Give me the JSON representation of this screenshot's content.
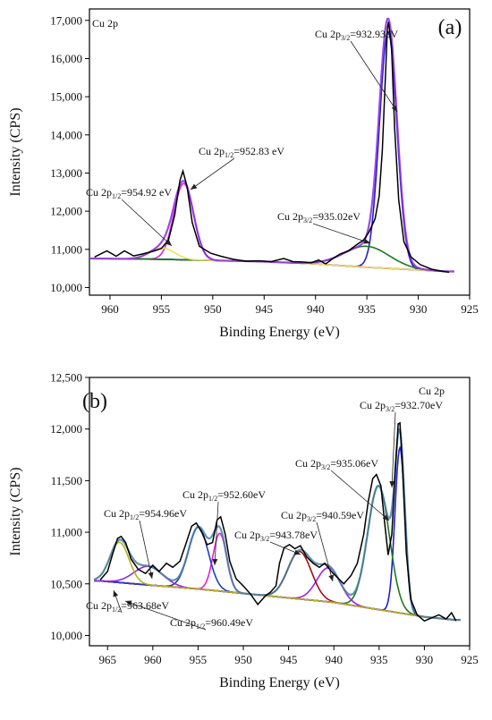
{
  "chart_data": [
    {
      "type": "line",
      "panel_label": "(a)",
      "corner_label": "Cu 2p",
      "xlabel": "Binding Energy (eV)",
      "ylabel": "Intensity (CPS)",
      "x_reversed": true,
      "xlim": [
        962,
        925
      ],
      "ylim": [
        9800,
        17300
      ],
      "xticks": [
        960,
        955,
        950,
        945,
        940,
        935,
        930,
        925
      ],
      "yticks": [
        10000,
        11000,
        12000,
        13000,
        14000,
        15000,
        16000,
        17000
      ],
      "ytick_labels": [
        "10,000",
        "11,000",
        "12,000",
        "13,000",
        "14,000",
        "15,000",
        "16,000",
        "17,000"
      ],
      "background": {
        "color": "#1a7a1a",
        "points": [
          [
            961.5,
            10760
          ],
          [
            955,
            10740
          ],
          [
            945,
            10680
          ],
          [
            940,
            10620
          ],
          [
            935,
            10530
          ],
          [
            930,
            10460
          ],
          [
            927,
            10420
          ]
        ]
      },
      "raw": {
        "color": "#000000",
        "points": [
          [
            961.5,
            10800
          ],
          [
            960.3,
            10960
          ],
          [
            959.4,
            10820
          ],
          [
            958.6,
            10960
          ],
          [
            957.7,
            10830
          ],
          [
            956.8,
            10880
          ],
          [
            955.8,
            10950
          ],
          [
            955.0,
            11020
          ],
          [
            954.3,
            11250
          ],
          [
            953.7,
            11900
          ],
          [
            953.2,
            12800
          ],
          [
            952.9,
            13050
          ],
          [
            952.5,
            12650
          ],
          [
            952.0,
            11700
          ],
          [
            951.3,
            11080
          ],
          [
            950.2,
            10900
          ],
          [
            949.2,
            10820
          ],
          [
            948.0,
            10740
          ],
          [
            946.8,
            10690
          ],
          [
            945.5,
            10700
          ],
          [
            944.3,
            10680
          ],
          [
            943.1,
            10760
          ],
          [
            942.2,
            10680
          ],
          [
            941.3,
            10670
          ],
          [
            940.4,
            10650
          ],
          [
            939.7,
            10720
          ],
          [
            939.0,
            10620
          ],
          [
            938.3,
            10760
          ],
          [
            937.6,
            10880
          ],
          [
            936.8,
            10960
          ],
          [
            936.1,
            11100
          ],
          [
            935.3,
            11250
          ],
          [
            934.8,
            11450
          ],
          [
            934.2,
            11800
          ],
          [
            933.8,
            12400
          ],
          [
            933.5,
            13600
          ],
          [
            933.2,
            15500
          ],
          [
            933.0,
            16800
          ],
          [
            932.9,
            16960
          ],
          [
            932.6,
            16300
          ],
          [
            932.3,
            14200
          ],
          [
            931.9,
            12300
          ],
          [
            931.4,
            11200
          ],
          [
            930.7,
            10800
          ],
          [
            929.8,
            10600
          ],
          [
            928.7,
            10480
          ],
          [
            927.6,
            10420
          ],
          [
            927.0,
            10400
          ]
        ]
      },
      "peaks": [
        {
          "label_main": "Cu 2p",
          "label_sub": "3/2",
          "label_rest": "=932.93eV",
          "center": 932.93,
          "height": 6200,
          "sigma": 0.85,
          "color": "#1f1fd0"
        },
        {
          "label_main": "Cu 2p",
          "label_sub": "1/2",
          "label_rest": "=952.83 eV",
          "center": 952.83,
          "height": 2000,
          "sigma": 0.95,
          "color": "#e020e0"
        },
        {
          "label_main": "Cu 2p",
          "label_sub": "3/2",
          "label_rest": "=935.02eV",
          "center": 935.02,
          "height": 550,
          "sigma": 2.2,
          "color": "#1a7a1a"
        },
        {
          "label_main": "Cu 2p",
          "label_sub": "1/2",
          "label_rest": "=954.92 eV",
          "center": 954.92,
          "height": 300,
          "sigma": 1.2,
          "color": "#f0e060"
        }
      ],
      "envelope_color": "#8a2be2"
    },
    {
      "type": "line",
      "panel_label": "(b)",
      "corner_label": "Cu 2p",
      "xlabel": "Binding Energy (eV)",
      "ylabel": "Intensity (CPS)",
      "x_reversed": true,
      "xlim": [
        967,
        925
      ],
      "ylim": [
        9900,
        12500
      ],
      "xticks": [
        965,
        960,
        955,
        950,
        945,
        940,
        935,
        930,
        925
      ],
      "yticks": [
        10000,
        10500,
        11000,
        11500,
        12000,
        12500
      ],
      "ytick_labels": [
        "10,000",
        "10,500",
        "11,000",
        "11,500",
        "12,000",
        "12,500"
      ],
      "background": {
        "color": "#8b6914",
        "points": [
          [
            966,
            10530
          ],
          [
            962,
            10500
          ],
          [
            955,
            10450
          ],
          [
            948,
            10390
          ],
          [
            940,
            10320
          ],
          [
            935,
            10250
          ],
          [
            930,
            10180
          ],
          [
            926.5,
            10150
          ]
        ]
      },
      "raw": {
        "color": "#000000",
        "points": [
          [
            965.8,
            10540
          ],
          [
            965.0,
            10620
          ],
          [
            964.4,
            10800
          ],
          [
            963.9,
            10940
          ],
          [
            963.5,
            10960
          ],
          [
            963.0,
            10900
          ],
          [
            962.4,
            10740
          ],
          [
            961.6,
            10640
          ],
          [
            960.8,
            10600
          ],
          [
            960.0,
            10680
          ],
          [
            959.3,
            10620
          ],
          [
            958.5,
            10700
          ],
          [
            957.8,
            10660
          ],
          [
            957.0,
            10720
          ],
          [
            956.3,
            10900
          ],
          [
            955.7,
            11060
          ],
          [
            955.2,
            11090
          ],
          [
            954.6,
            11000
          ],
          [
            954.0,
            10880
          ],
          [
            953.4,
            10900
          ],
          [
            952.9,
            11120
          ],
          [
            952.5,
            11150
          ],
          [
            952.0,
            10980
          ],
          [
            951.5,
            10720
          ],
          [
            950.8,
            10550
          ],
          [
            950.0,
            10480
          ],
          [
            949.2,
            10400
          ],
          [
            948.4,
            10300
          ],
          [
            947.6,
            10380
          ],
          [
            947.0,
            10420
          ],
          [
            946.4,
            10480
          ],
          [
            946.0,
            10700
          ],
          [
            945.5,
            10850
          ],
          [
            944.9,
            10880
          ],
          [
            944.3,
            10840
          ],
          [
            943.7,
            10870
          ],
          [
            943.0,
            10760
          ],
          [
            942.3,
            10700
          ],
          [
            941.6,
            10660
          ],
          [
            941.0,
            10700
          ],
          [
            940.3,
            10620
          ],
          [
            939.6,
            10560
          ],
          [
            938.9,
            10500
          ],
          [
            938.1,
            10580
          ],
          [
            937.4,
            10700
          ],
          [
            936.7,
            10980
          ],
          [
            936.2,
            11300
          ],
          [
            935.7,
            11520
          ],
          [
            935.3,
            11560
          ],
          [
            934.8,
            11450
          ],
          [
            934.4,
            11100
          ],
          [
            934.0,
            10780
          ],
          [
            933.6,
            10980
          ],
          [
            933.2,
            11600
          ],
          [
            932.9,
            12050
          ],
          [
            932.7,
            12060
          ],
          [
            932.4,
            11600
          ],
          [
            932.0,
            10800
          ],
          [
            931.5,
            10350
          ],
          [
            930.8,
            10200
          ],
          [
            930.0,
            10140
          ],
          [
            929.2,
            10170
          ],
          [
            928.4,
            10200
          ],
          [
            927.6,
            10160
          ],
          [
            927.0,
            10220
          ],
          [
            926.5,
            10140
          ]
        ]
      },
      "peaks": [
        {
          "label_main": "Cu 2p",
          "label_sub": "3/2",
          "label_rest": "=932.70eV",
          "center": 932.7,
          "height": 1600,
          "sigma": 0.55,
          "color": "#1f1fd0"
        },
        {
          "label_main": "Cu 2p",
          "label_sub": "3/2",
          "label_rest": "=935.06eV",
          "center": 935.06,
          "height": 1200,
          "sigma": 1.2,
          "color": "#1a7a1a"
        },
        {
          "label_main": "Cu 2p",
          "label_sub": "3/2",
          "label_rest": "=940.59eV",
          "center": 940.59,
          "height": 330,
          "sigma": 1.3,
          "color": "#a020f0"
        },
        {
          "label_main": "Cu 2p",
          "label_sub": "3/2",
          "label_rest": "=943.78eV",
          "center": 943.78,
          "height": 460,
          "sigma": 1.3,
          "color": "#a01010"
        },
        {
          "label_main": "Cu 2p",
          "label_sub": "1/2",
          "label_rest": "=952.60eV",
          "center": 952.6,
          "height": 560,
          "sigma": 0.75,
          "color": "#e020e0"
        },
        {
          "label_main": "Cu 2p",
          "label_sub": "1/2",
          "label_rest": "=954.96eV",
          "center": 954.96,
          "height": 600,
          "sigma": 1.1,
          "color": "#1f3fbf"
        },
        {
          "label_main": "Cu 2p",
          "label_sub": "1/2",
          "label_rest": "=960.49eV",
          "center": 960.49,
          "height": 180,
          "sigma": 1.6,
          "color": "#8a2be2"
        },
        {
          "label_main": "Cu 2p",
          "label_sub": "1/2",
          "label_rest": "=963.68eV",
          "center": 963.68,
          "height": 390,
          "sigma": 1.05,
          "color": "#b8b020"
        }
      ],
      "envelope_color": "#4a7fa0"
    }
  ]
}
